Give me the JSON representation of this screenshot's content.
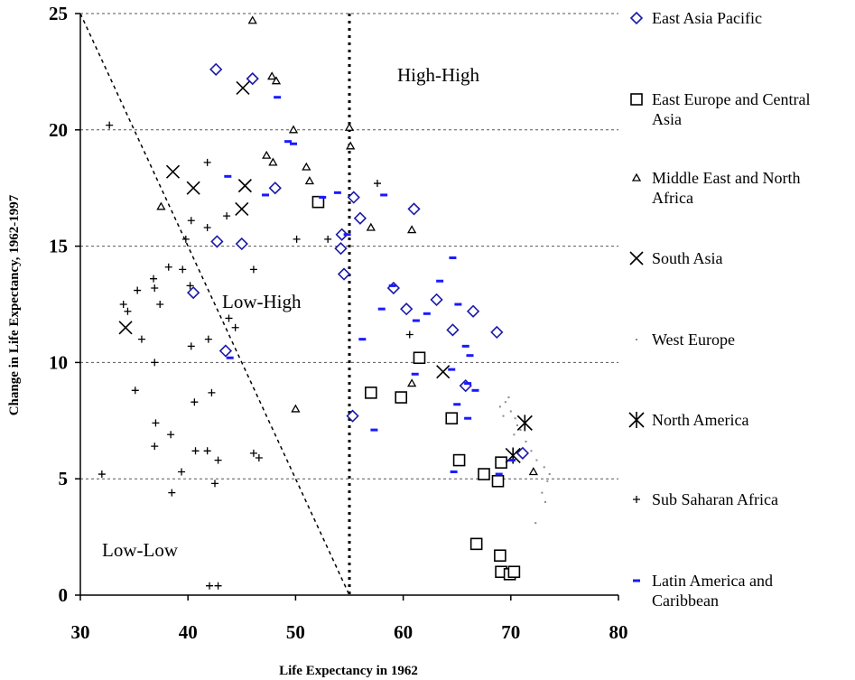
{
  "chart_data": {
    "type": "scatter",
    "xlabel": "Life Expectancy in 1962",
    "ylabel": "Change in Life Expectancy, 1962-1997",
    "xlim": [
      30,
      80
    ],
    "ylim": [
      0,
      25
    ],
    "x_ticks": [
      "30",
      "40",
      "50",
      "60",
      "70",
      "80"
    ],
    "y_ticks": [
      "0",
      "5",
      "10",
      "15",
      "20",
      "25"
    ],
    "grid": "horizontal dashed",
    "legend_position": "right",
    "vertical_line": {
      "x": 55,
      "style": "dotted"
    },
    "diagonal_line": {
      "from": [
        30,
        25
      ],
      "to": [
        55,
        0
      ],
      "style": "dashed"
    },
    "region_labels": [
      "High-High",
      "Low-High",
      "Low-Low"
    ],
    "series": [
      {
        "name": "East Asia Pacific",
        "marker": "diamond",
        "color": "#1a1aa6",
        "points": [
          [
            42.6,
            22.6
          ],
          [
            46,
            22.2
          ],
          [
            48.1,
            17.5
          ],
          [
            42.7,
            15.2
          ],
          [
            45,
            15.1
          ],
          [
            40.5,
            13
          ],
          [
            43.5,
            10.5
          ],
          [
            55.4,
            17.1
          ],
          [
            56,
            16.2
          ],
          [
            54.3,
            15.5
          ],
          [
            54.2,
            14.9
          ],
          [
            54.5,
            13.8
          ],
          [
            61,
            16.6
          ],
          [
            59.1,
            13.2
          ],
          [
            60.3,
            12.3
          ],
          [
            63.1,
            12.7
          ],
          [
            64.6,
            11.4
          ],
          [
            66.5,
            12.2
          ],
          [
            68.7,
            11.3
          ],
          [
            55.3,
            7.7
          ],
          [
            65.8,
            9
          ],
          [
            71.1,
            6.1
          ]
        ]
      },
      {
        "name": "East Europe and Central Asia",
        "marker": "square",
        "color": "#000000",
        "points": [
          [
            52.1,
            16.9
          ],
          [
            57,
            8.7
          ],
          [
            59.8,
            8.5
          ],
          [
            61.5,
            10.2
          ],
          [
            64.5,
            7.6
          ],
          [
            65.2,
            5.8
          ],
          [
            67.5,
            5.2
          ],
          [
            68.8,
            4.9
          ],
          [
            69.1,
            5.7
          ],
          [
            66.8,
            2.2
          ],
          [
            69,
            1.7
          ],
          [
            69.1,
            1
          ],
          [
            69.9,
            0.9
          ],
          [
            70.3,
            1
          ]
        ]
      },
      {
        "name": "Middle East and North Africa",
        "marker": "triangle",
        "color": "#000000",
        "points": [
          [
            46,
            24.7
          ],
          [
            47.8,
            22.3
          ],
          [
            48.2,
            22.1
          ],
          [
            49.8,
            20
          ],
          [
            55,
            20.1
          ],
          [
            55.1,
            19.3
          ],
          [
            47.3,
            18.9
          ],
          [
            47.9,
            18.6
          ],
          [
            51,
            18.4
          ],
          [
            51.3,
            17.8
          ],
          [
            37.5,
            16.7
          ],
          [
            60.8,
            15.7
          ],
          [
            57,
            15.8
          ],
          [
            50,
            8
          ],
          [
            60.8,
            9.1
          ],
          [
            72.1,
            5.3
          ]
        ]
      },
      {
        "name": "South Asia",
        "marker": "x",
        "color": "#000000",
        "points": [
          [
            45.1,
            21.8
          ],
          [
            38.6,
            18.2
          ],
          [
            40.5,
            17.5
          ],
          [
            45.3,
            17.6
          ],
          [
            45,
            16.6
          ],
          [
            34.2,
            11.5
          ],
          [
            63.7,
            9.6
          ]
        ]
      },
      {
        "name": "West Europe",
        "marker": "dot",
        "color": "#8a8a8a",
        "points": [
          [
            69,
            8.1
          ],
          [
            69.5,
            8.3
          ],
          [
            70,
            7.9
          ],
          [
            70.4,
            7.6
          ],
          [
            69.3,
            7.7
          ],
          [
            69.8,
            8.5
          ],
          [
            70.6,
            7.3
          ],
          [
            71.4,
            6.6
          ],
          [
            71.9,
            6.2
          ],
          [
            72.4,
            5.8
          ],
          [
            73.1,
            5.5
          ],
          [
            73.6,
            5.2
          ],
          [
            73.4,
            4.9
          ],
          [
            72.9,
            4.4
          ],
          [
            73.2,
            4.0
          ],
          [
            72.3,
            3.1
          ],
          [
            70.3,
            6.9
          ],
          [
            70.9,
            7.1
          ]
        ]
      },
      {
        "name": "North America",
        "marker": "asterisk",
        "color": "#000000",
        "points": [
          [
            71.3,
            7.4
          ],
          [
            70.2,
            6
          ]
        ]
      },
      {
        "name": "Sub Saharan Africa",
        "marker": "plus",
        "color": "#000000",
        "points": [
          [
            32.7,
            20.2
          ],
          [
            41.8,
            18.6
          ],
          [
            40.3,
            16.1
          ],
          [
            41.8,
            15.8
          ],
          [
            43.6,
            16.3
          ],
          [
            39.8,
            15.3
          ],
          [
            38.2,
            14.1
          ],
          [
            39.5,
            14
          ],
          [
            35.3,
            13.1
          ],
          [
            36.8,
            13.6
          ],
          [
            36.9,
            13.2
          ],
          [
            40.2,
            13.3
          ],
          [
            34,
            12.5
          ],
          [
            34.4,
            12.2
          ],
          [
            37.4,
            12.5
          ],
          [
            43.8,
            11.9
          ],
          [
            44.4,
            11.5
          ],
          [
            35.7,
            11
          ],
          [
            41.9,
            11
          ],
          [
            40.3,
            10.7
          ],
          [
            36.9,
            10
          ],
          [
            35.1,
            8.8
          ],
          [
            42.2,
            8.7
          ],
          [
            40.6,
            8.3
          ],
          [
            37,
            7.4
          ],
          [
            38.4,
            6.9
          ],
          [
            36.9,
            6.4
          ],
          [
            40.7,
            6.2
          ],
          [
            41.8,
            6.2
          ],
          [
            42.8,
            5.8
          ],
          [
            39.4,
            5.3
          ],
          [
            42.5,
            4.8
          ],
          [
            38.5,
            4.4
          ],
          [
            32,
            5.2
          ],
          [
            42,
            0.4
          ],
          [
            42.8,
            0.4
          ],
          [
            46.1,
            6.1
          ],
          [
            46.6,
            5.9
          ],
          [
            46.1,
            14
          ],
          [
            50.1,
            15.3
          ],
          [
            53,
            15.3
          ],
          [
            57.6,
            17.7
          ],
          [
            60.6,
            11.2
          ]
        ]
      },
      {
        "name": "Latin America and Caribbean",
        "marker": "dash",
        "color": "#1a1aff",
        "points": [
          [
            48.3,
            21.4
          ],
          [
            49.3,
            19.5
          ],
          [
            49.8,
            19.4
          ],
          [
            43.7,
            18
          ],
          [
            47.2,
            17.2
          ],
          [
            52.5,
            17.1
          ],
          [
            53.9,
            17.3
          ],
          [
            58.2,
            17.2
          ],
          [
            54.8,
            15.5
          ],
          [
            56.2,
            11
          ],
          [
            59,
            13.3
          ],
          [
            58,
            12.3
          ],
          [
            61.2,
            11.8
          ],
          [
            62.2,
            12.1
          ],
          [
            63.4,
            13.5
          ],
          [
            64.6,
            14.5
          ],
          [
            65.1,
            12.5
          ],
          [
            65.8,
            10.7
          ],
          [
            66.2,
            10.3
          ],
          [
            61.1,
            9.5
          ],
          [
            64.5,
            9.7
          ],
          [
            66,
            9.1
          ],
          [
            66.7,
            8.8
          ],
          [
            65,
            8.2
          ],
          [
            66,
            7.6
          ],
          [
            57.3,
            7.1
          ],
          [
            64.7,
            5.3
          ],
          [
            68.9,
            5.2
          ],
          [
            70.1,
            5.8
          ],
          [
            43.9,
            10.2
          ]
        ]
      }
    ]
  }
}
